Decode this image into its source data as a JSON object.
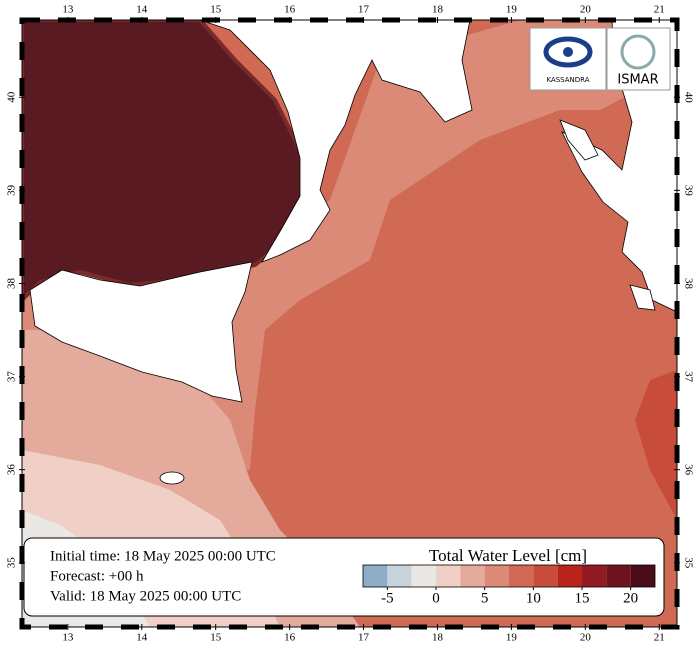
{
  "map": {
    "lon_ticks": [
      13,
      14,
      15,
      16,
      17,
      18,
      19,
      20,
      21
    ],
    "lat_ticks": [
      35,
      36,
      37,
      38,
      39,
      40
    ],
    "lon_lim": [
      12.38,
      21.24
    ],
    "lat_lim": [
      34.31,
      40.83
    ],
    "logos": [
      "KASSANDRA",
      "ISMAR"
    ],
    "info": {
      "initial_time": "Initial time: 18 May 2025 00:00 UTC",
      "forecast": "Forecast: +00 h",
      "valid": "Valid: 18 May 2025 00:00 UTC"
    },
    "legend": {
      "title": "Total Water Level [cm]",
      "clim": [
        -7.5,
        22.5
      ],
      "colors": [
        "#8fadc8",
        "#c8d2da",
        "#ebe7e5",
        "#f0cfc6",
        "#e4aa9b",
        "#da8a76",
        "#d06a55",
        "#c84c3a",
        "#b8231c",
        "#921a22",
        "#6e1320",
        "#4a0c16"
      ],
      "ticks": [
        -5,
        0,
        5,
        10,
        15,
        20
      ]
    }
  }
}
